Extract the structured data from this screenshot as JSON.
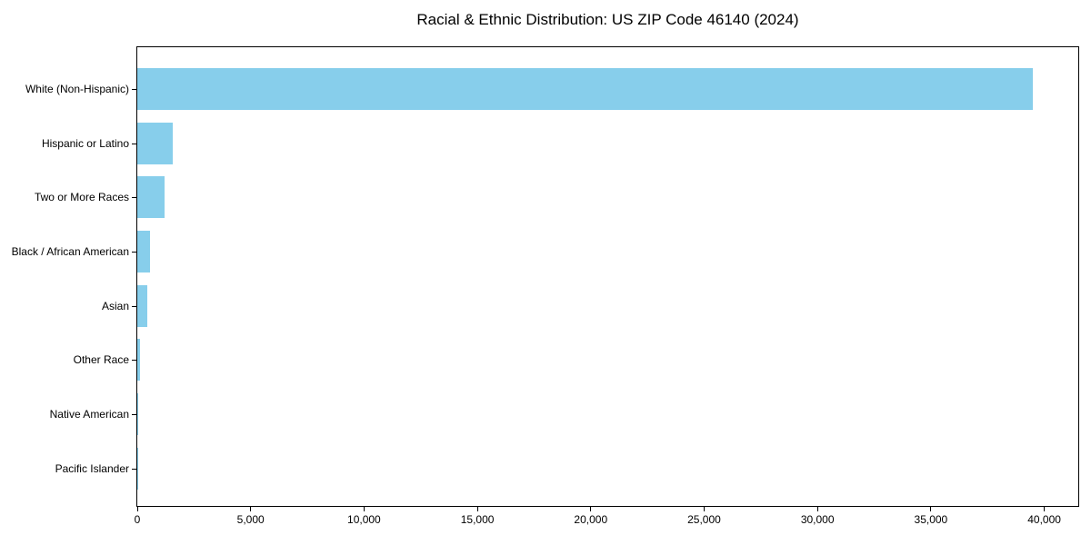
{
  "chart_data": {
    "type": "bar",
    "orientation": "horizontal",
    "title": "Racial & Ethnic Distribution: US ZIP Code 46140 (2024)",
    "categories": [
      "White (Non-Hispanic)",
      "Hispanic or Latino",
      "Two or More Races",
      "Black / African American",
      "Asian",
      "Other Race",
      "Native American",
      "Pacific Islander"
    ],
    "values": [
      39500,
      1550,
      1200,
      580,
      430,
      120,
      40,
      15
    ],
    "xlabel": "",
    "ylabel": "",
    "xlim": [
      0,
      41500
    ],
    "x_ticks": [
      0,
      5000,
      10000,
      15000,
      20000,
      25000,
      30000,
      35000,
      40000
    ],
    "x_tick_labels": [
      "0",
      "5,000",
      "10,000",
      "15,000",
      "20,000",
      "25,000",
      "30,000",
      "35,000",
      "40,000"
    ],
    "bar_color": "#87CEEB",
    "axis_color": "#000000",
    "text_color": "#000000",
    "grid": false,
    "legend": "none",
    "background": "#ffffff"
  }
}
